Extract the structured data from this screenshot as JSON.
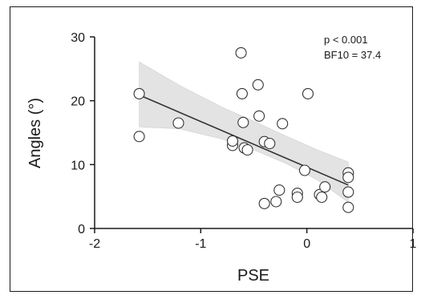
{
  "chart_data": {
    "type": "scatter",
    "xlabel": "PSE",
    "ylabel": "Angles (°)",
    "xlim": [
      -2,
      1
    ],
    "ylim": [
      0,
      30
    ],
    "x_ticks": [
      -2,
      -1,
      0,
      1
    ],
    "y_ticks": [
      0,
      10,
      20,
      30
    ],
    "x_tick_labels": [
      "-2",
      "-1",
      "0",
      "1"
    ],
    "y_tick_labels": [
      "0",
      "10",
      "20",
      "30"
    ],
    "grid": false,
    "annotations": [
      "p < 0.001",
      "BF10 = 37.4"
    ],
    "points": [
      {
        "x": -1.58,
        "y": 21.1
      },
      {
        "x": -1.58,
        "y": 14.4
      },
      {
        "x": -1.21,
        "y": 16.5
      },
      {
        "x": -0.7,
        "y": 13.0
      },
      {
        "x": -0.7,
        "y": 13.7
      },
      {
        "x": -0.62,
        "y": 27.5
      },
      {
        "x": -0.61,
        "y": 21.1
      },
      {
        "x": -0.6,
        "y": 16.6
      },
      {
        "x": -0.59,
        "y": 12.6
      },
      {
        "x": -0.56,
        "y": 12.3
      },
      {
        "x": -0.46,
        "y": 22.5
      },
      {
        "x": -0.45,
        "y": 17.6
      },
      {
        "x": -0.4,
        "y": 13.6
      },
      {
        "x": -0.35,
        "y": 13.3
      },
      {
        "x": -0.4,
        "y": 3.9
      },
      {
        "x": -0.29,
        "y": 4.2
      },
      {
        "x": -0.26,
        "y": 6.0
      },
      {
        "x": -0.23,
        "y": 16.4
      },
      {
        "x": -0.09,
        "y": 5.5
      },
      {
        "x": -0.09,
        "y": 4.9
      },
      {
        "x": -0.02,
        "y": 9.1
      },
      {
        "x": 0.01,
        "y": 21.1
      },
      {
        "x": 0.12,
        "y": 5.3
      },
      {
        "x": 0.14,
        "y": 4.9
      },
      {
        "x": 0.17,
        "y": 6.5
      },
      {
        "x": 0.39,
        "y": 8.7
      },
      {
        "x": 0.39,
        "y": 8.0
      },
      {
        "x": 0.39,
        "y": 5.7
      },
      {
        "x": 0.39,
        "y": 3.3
      }
    ],
    "regression": {
      "x": [
        -1.58,
        0.39
      ],
      "y": [
        20.9,
        6.8
      ]
    },
    "confidence_band": {
      "x": [
        -1.58,
        -1.2,
        -0.8,
        -0.5,
        -0.2,
        0.1,
        0.39
      ],
      "lower": [
        15.9,
        15.6,
        14.0,
        12.3,
        10.2,
        7.6,
        4.1
      ],
      "upper": [
        26.1,
        22.4,
        19.0,
        16.8,
        14.5,
        12.3,
        10.4
      ]
    }
  }
}
